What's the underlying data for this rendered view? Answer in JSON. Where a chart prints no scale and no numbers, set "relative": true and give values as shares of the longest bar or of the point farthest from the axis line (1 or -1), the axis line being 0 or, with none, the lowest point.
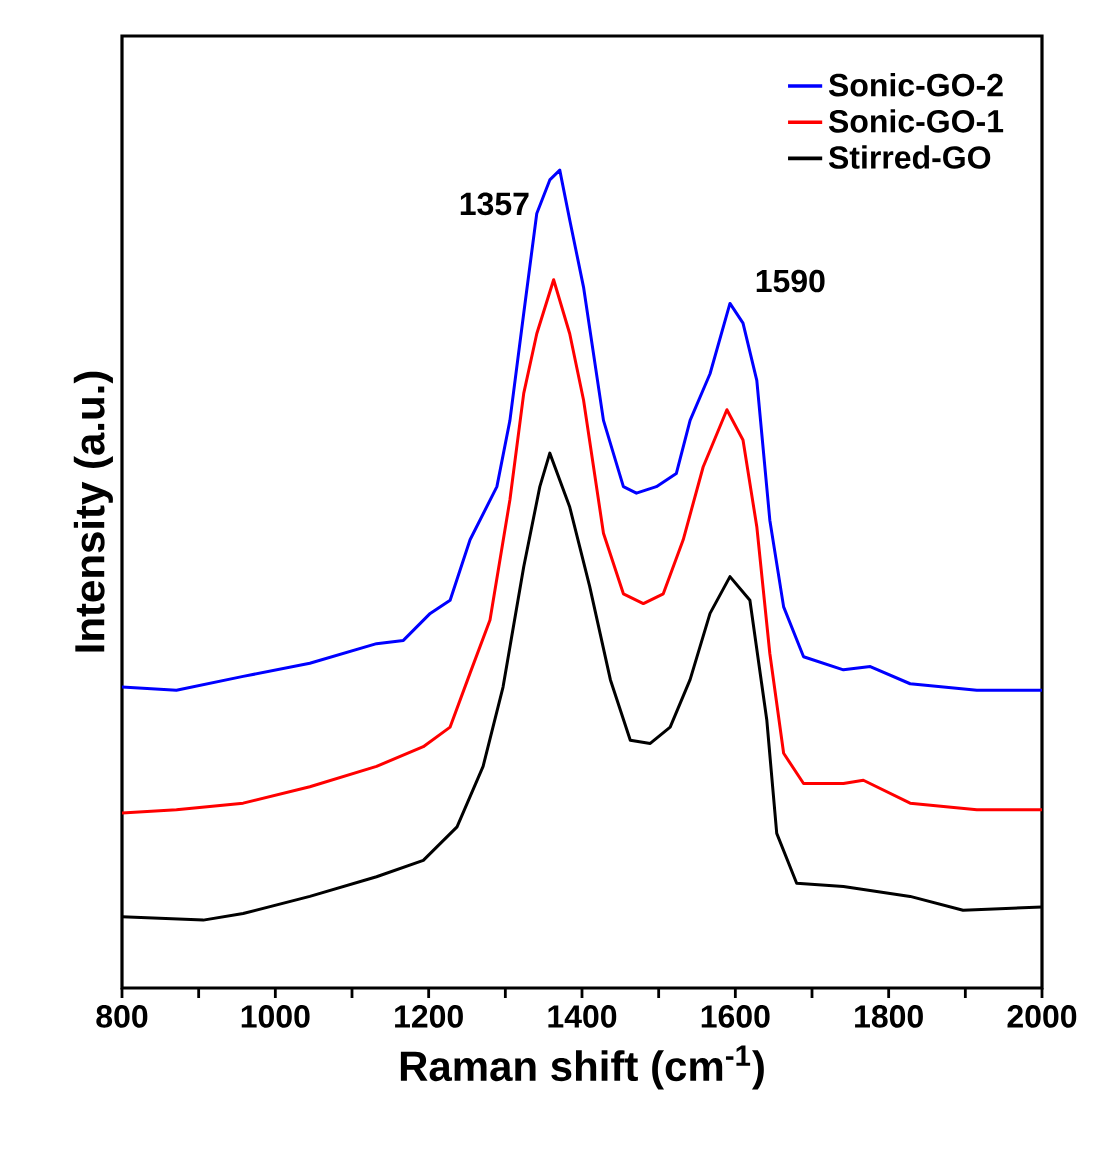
{
  "chart_data": {
    "type": "line",
    "relative": true,
    "xlabel": "Raman shift (cm$^{-1}$)",
    "ylabel": "Intensity (a.u.)",
    "xlim": [
      800,
      2000
    ],
    "xticks": [
      800,
      {
        "value": 900,
        "label": null
      },
      1000,
      {
        "value": 1100,
        "label": null
      },
      1200,
      {
        "value": 1300,
        "label": null
      },
      1400,
      {
        "value": 1500,
        "label": null
      },
      1600,
      {
        "value": 1700,
        "label": null
      },
      1800,
      {
        "value": 1900,
        "label": null
      },
      2000
    ],
    "legend": "top right",
    "grid": false,
    "marker": "none",
    "line_style": "solid",
    "annotations": [
      {
        "text": "1357",
        "x": 1357,
        "y": 0.99
      },
      {
        "text": "1590",
        "x": 1590,
        "y": 0.837
      }
    ],
    "series": [
      {
        "name": "Sonic-GO-2",
        "color": "#0000ff",
        "x": [
          800,
          871,
          958,
          1045,
          1132,
          1167,
          1202,
          1228,
          1254,
          1289,
          1306,
          1324,
          1341,
          1358,
          1371,
          1384,
          1402,
          1428,
          1454,
          1471,
          1497,
          1523,
          1541,
          1567,
          1593,
          1610,
          1628,
          1645,
          1663,
          1689,
          1741,
          1776,
          1828,
          1915,
          2000
        ],
        "values": [
          0.368,
          0.364,
          0.381,
          0.397,
          0.421,
          0.425,
          0.458,
          0.474,
          0.548,
          0.613,
          0.694,
          0.825,
          0.947,
          0.988,
          1,
          0.939,
          0.857,
          0.694,
          0.613,
          0.605,
          0.613,
          0.629,
          0.694,
          0.751,
          0.837,
          0.813,
          0.743,
          0.572,
          0.466,
          0.405,
          0.389,
          0.393,
          0.372,
          0.364,
          0.364
        ]
      },
      {
        "name": "Sonic-GO-1",
        "color": "#ff0000",
        "x": [
          800,
          871,
          958,
          1045,
          1132,
          1193,
          1228,
          1254,
          1280,
          1306,
          1324,
          1341,
          1363,
          1384,
          1402,
          1428,
          1454,
          1480,
          1506,
          1532,
          1558,
          1589,
          1610,
          1628,
          1645,
          1663,
          1689,
          1741,
          1767,
          1828,
          1915,
          2000
        ],
        "values": [
          0.214,
          0.218,
          0.226,
          0.246,
          0.271,
          0.295,
          0.319,
          0.385,
          0.45,
          0.597,
          0.727,
          0.8,
          0.866,
          0.8,
          0.719,
          0.556,
          0.482,
          0.47,
          0.482,
          0.548,
          0.637,
          0.707,
          0.67,
          0.564,
          0.409,
          0.287,
          0.25,
          0.25,
          0.254,
          0.226,
          0.218,
          0.218
        ]
      },
      {
        "name": "Stirred-GO",
        "color": "#000000",
        "x": [
          800,
          906,
          958,
          1045,
          1132,
          1193,
          1237,
          1271,
          1297,
          1324,
          1345,
          1358,
          1384,
          1410,
          1437,
          1463,
          1489,
          1515,
          1541,
          1567,
          1593,
          1619,
          1641,
          1654,
          1680,
          1741,
          1828,
          1897,
          2000
        ],
        "values": [
          0.087,
          0.083,
          0.091,
          0.112,
          0.136,
          0.156,
          0.197,
          0.271,
          0.368,
          0.515,
          0.613,
          0.654,
          0.588,
          0.491,
          0.377,
          0.303,
          0.299,
          0.319,
          0.377,
          0.458,
          0.503,
          0.474,
          0.328,
          0.189,
          0.128,
          0.124,
          0.112,
          0.095,
          0.099
        ]
      }
    ]
  }
}
